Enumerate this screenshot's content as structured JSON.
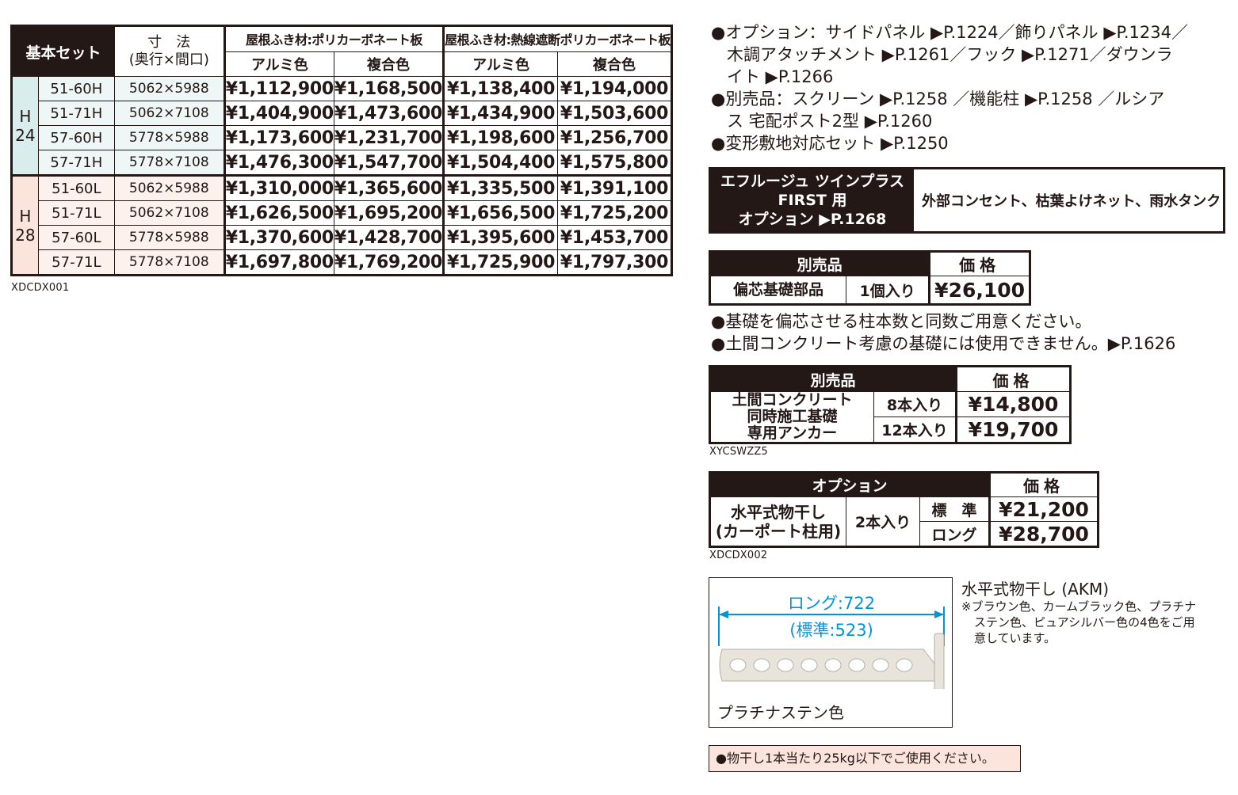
{
  "main_table": {
    "header_set": "基本セット",
    "header_dim_line1": "寸　法",
    "header_dim_line2": "(奥行×間口)",
    "roof_1": "屋根ふき材:ポリカーボネート板",
    "roof_2": "屋根ふき材:熱線遮断ポリカーボネート板",
    "color_alumi": "アルミ色",
    "color_fukugo": "複合色",
    "group_h_line1": "H",
    "group_h_line2": "24",
    "group_l_line1": "H",
    "group_l_line2": "28",
    "rows": [
      {
        "model": "51-60H",
        "size": "5062×5988",
        "p1": "¥1,112,900",
        "p2": "¥1,168,500",
        "p3": "¥1,138,400",
        "p4": "¥1,194,000"
      },
      {
        "model": "51-71H",
        "size": "5062×7108",
        "p1": "¥1,404,900",
        "p2": "¥1,473,600",
        "p3": "¥1,434,900",
        "p4": "¥1,503,600"
      },
      {
        "model": "57-60H",
        "size": "5778×5988",
        "p1": "¥1,173,600",
        "p2": "¥1,231,700",
        "p3": "¥1,198,600",
        "p4": "¥1,256,700"
      },
      {
        "model": "57-71H",
        "size": "5778×7108",
        "p1": "¥1,476,300",
        "p2": "¥1,547,700",
        "p3": "¥1,504,400",
        "p4": "¥1,575,800"
      },
      {
        "model": "51-60L",
        "size": "5062×5988",
        "p1": "¥1,310,000",
        "p2": "¥1,365,600",
        "p3": "¥1,335,500",
        "p4": "¥1,391,100"
      },
      {
        "model": "51-71L",
        "size": "5062×7108",
        "p1": "¥1,626,500",
        "p2": "¥1,695,200",
        "p3": "¥1,656,500",
        "p4": "¥1,725,200"
      },
      {
        "model": "57-60L",
        "size": "5778×5988",
        "p1": "¥1,370,600",
        "p2": "¥1,428,700",
        "p3": "¥1,395,600",
        "p4": "¥1,453,700"
      },
      {
        "model": "57-71L",
        "size": "5778×7108",
        "p1": "¥1,697,800",
        "p2": "¥1,769,200",
        "p3": "¥1,725,900",
        "p4": "¥1,797,300"
      }
    ],
    "code": "XDCDX001"
  },
  "notes": {
    "line1": "●オプション：サイドパネル ▶P.1224／飾りパネル ▶P.1234／",
    "line2": "木調アタッチメント ▶P.1261／フック ▶P.1271／ダウンラ",
    "line3": "イト ▶P.1266",
    "line4": "●別売品：スクリーン ▶P.1258 ／機能柱 ▶P.1258 ／ルシア",
    "line5": "ス 宅配ポスト2型 ▶P.1260",
    "line6": "●変形敷地対応セット ▶P.1250"
  },
  "first_option": {
    "line1": "エフルージュ ツインプラス",
    "line2": "FIRST 用",
    "line3": "オプション ▶P.1268",
    "items": "外部コンセント、枯葉よけネット、雨水タンク"
  },
  "offset_base": {
    "header": "別売品",
    "price_header": "価格",
    "name": "偏芯基礎部品",
    "qty": "1個入り",
    "price": "¥26,100",
    "note1": "●基礎を偏芯させる柱本数と同数ご用意ください。",
    "note2": "●土間コンクリート考慮の基礎には使用できません。▶P.1626"
  },
  "anchor": {
    "header": "別売品",
    "price_header": "価格",
    "name_line1": "土間コンクリート",
    "name_line2": "同時施工基礎",
    "name_line3": "専用アンカー",
    "qty1": "8本入り",
    "price1": "¥14,800",
    "qty2": "12本入り",
    "price2": "¥19,700",
    "code": "XYCSWZZ5"
  },
  "drying": {
    "header": "オプション",
    "price_header": "価格",
    "name_line1": "水平式物干し",
    "name_line2": "(カーポート柱用)",
    "qty": "2本入り",
    "type1": "標　準",
    "price1": "¥21,200",
    "type2": "ロング",
    "price2": "¥28,700",
    "code": "XDCDX002"
  },
  "product": {
    "dim_long": "ロング:722",
    "dim_std": "(標準:523)",
    "color_label": "プラチナステン色",
    "title": "水平式物干し (AKM)",
    "desc1": "※ブラウン色、カームブラック色、プラチナ",
    "desc2": "ステン色、ピュアシルバー色の4色をご用",
    "desc3": "意しています。",
    "accent_color": "#0095d9"
  },
  "warning": "●物干し1本当たり25kg以下でご使用ください。"
}
